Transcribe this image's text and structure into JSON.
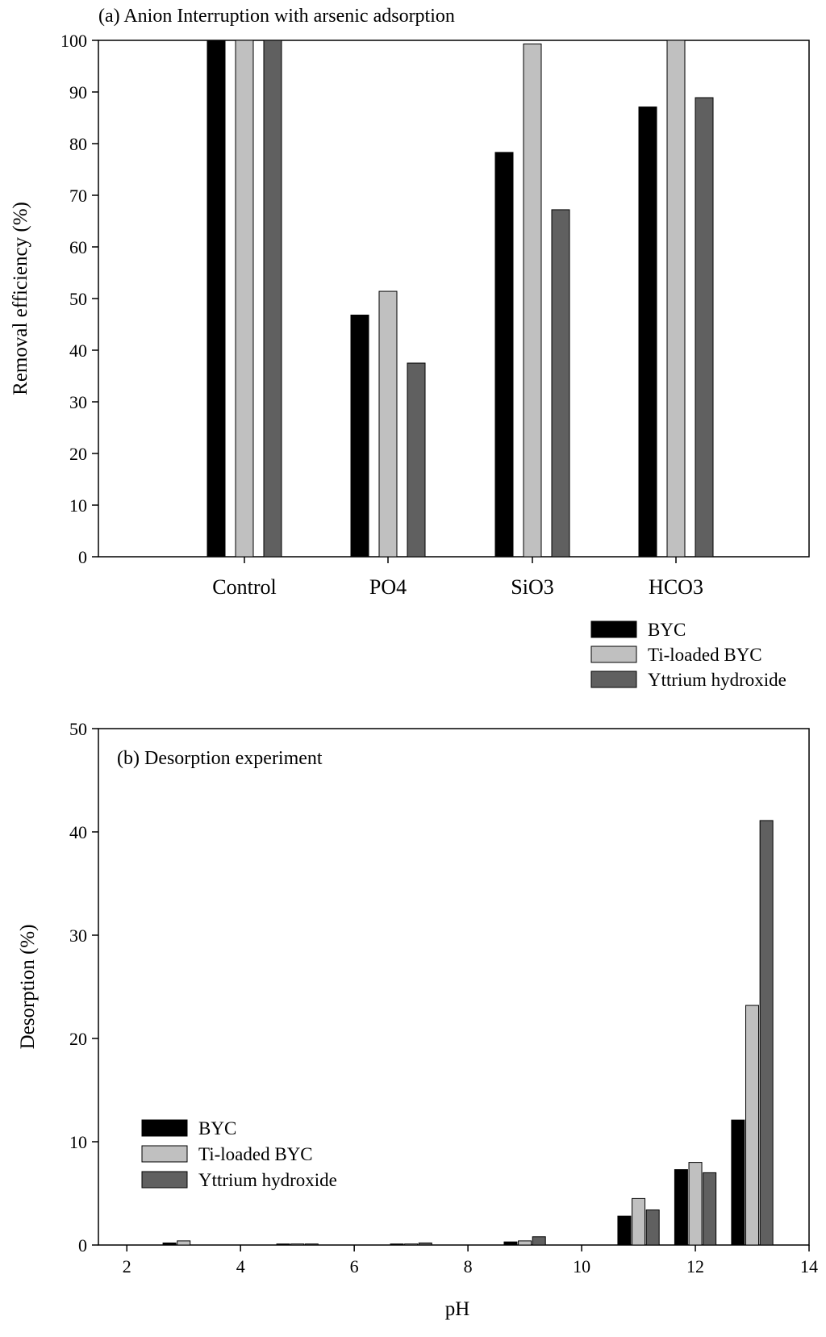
{
  "chart_data": [
    {
      "type": "bar",
      "title": "(a) Anion Interruption with arsenic adsorption",
      "xlabel": "",
      "ylabel": "Removal efficiency (%)",
      "ylim": [
        0,
        100
      ],
      "yticks": [
        0,
        10,
        20,
        30,
        40,
        50,
        60,
        70,
        80,
        90,
        100
      ],
      "categories": [
        "Control",
        "PO4",
        "SiO3",
        "HCO3"
      ],
      "series": [
        {
          "name": "BYC",
          "color": "#000000",
          "values": [
            100,
            46.8,
            78.3,
            87.1
          ]
        },
        {
          "name": "Ti-loaded BYC",
          "color": "#c0c0c0",
          "values": [
            100,
            51.4,
            99.3,
            100
          ]
        },
        {
          "name": "Yttrium hydroxide",
          "color": "#606060",
          "values": [
            100,
            37.5,
            67.2,
            88.9
          ]
        }
      ],
      "legend_position": "below-right"
    },
    {
      "type": "bar",
      "title": "(b) Desorption experiment",
      "xlabel": "pH",
      "ylabel": "Desorption (%)",
      "ylim": [
        0,
        50
      ],
      "xlim": [
        1.5,
        14
      ],
      "yticks": [
        0,
        10,
        20,
        30,
        40,
        50
      ],
      "xticks": [
        2,
        4,
        6,
        8,
        10,
        12,
        14
      ],
      "x": [
        3,
        5,
        7,
        9,
        11,
        12,
        13
      ],
      "series": [
        {
          "name": "BYC",
          "color": "#000000",
          "values": [
            0.2,
            0.1,
            0.1,
            0.3,
            2.8,
            7.3,
            12.1
          ]
        },
        {
          "name": "Ti-loaded BYC",
          "color": "#c0c0c0",
          "values": [
            0.4,
            0.1,
            0.1,
            0.4,
            4.5,
            8.0,
            23.2
          ]
        },
        {
          "name": "Yttrium hydroxide",
          "color": "#606060",
          "values": [
            0.0,
            0.1,
            0.2,
            0.8,
            3.4,
            7.0,
            41.1
          ]
        }
      ],
      "legend_position": "center-left"
    }
  ]
}
